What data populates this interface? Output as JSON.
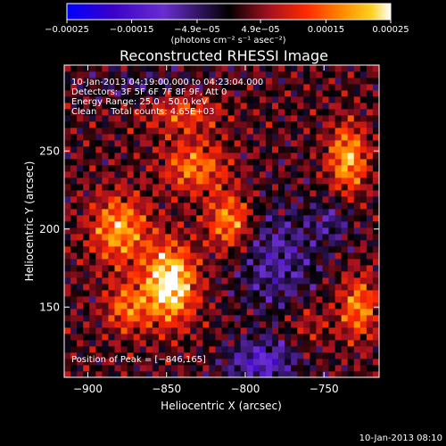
{
  "chart_data": {
    "type": "heatmap",
    "title": "Reconstructed RHESSI Image",
    "xlabel": "Heliocentric X (arcsec)",
    "ylabel": "Heliocentric Y (arcsec)",
    "xlim": [
      -915,
      -715
    ],
    "ylim": [
      105,
      305
    ],
    "x_ticks": [
      -900,
      -850,
      -800,
      -750
    ],
    "x_tick_labels": [
      "−900",
      "−850",
      "−800",
      "−750"
    ],
    "y_ticks": [
      150,
      200,
      250
    ],
    "y_tick_labels": [
      "150",
      "200",
      "250"
    ],
    "colorbar": {
      "range": [
        -0.00025,
        0.00025
      ],
      "tick_values": [
        -0.00025,
        -0.00015,
        -4.9e-05,
        4.9e-05,
        0.00015,
        0.00025
      ],
      "tick_labels": [
        "−0.00025",
        "−0.00015",
        "−4.9e−05",
        "4.9e−05",
        "0.00015",
        "0.00025"
      ],
      "unit_label": "(photons cm⁻² s⁻¹ asec⁻²)",
      "colors": [
        "#0000ff",
        "#3a00c8",
        "#6a2dd1",
        "#000000",
        "#a01020",
        "#ff2a00",
        "#ff8a00",
        "#ffd020",
        "#ffffff"
      ]
    },
    "annotations": [
      "10-Jan-2013 04:19:00.000 to 04:23:04.000",
      "Detectors: 3F 5F 6F 7F 8F 9F, Att 0",
      "Energy Range: 25.0 - 50.0 keV",
      "Clean     Total counts: 4.65E+03",
      "Position of Peak = [−846,165]"
    ],
    "peak": {
      "x": -846,
      "y": 165
    },
    "blobs": [
      {
        "x": -848,
        "y": 165,
        "sx": 16,
        "sy": 24,
        "a": 0.00026
      },
      {
        "x": -880,
        "y": 200,
        "sx": 18,
        "sy": 22,
        "a": 0.00017
      },
      {
        "x": -875,
        "y": 150,
        "sx": 14,
        "sy": 16,
        "a": 0.00013
      },
      {
        "x": -810,
        "y": 205,
        "sx": 14,
        "sy": 18,
        "a": 0.00016
      },
      {
        "x": -832,
        "y": 240,
        "sx": 20,
        "sy": 16,
        "a": 0.00014
      },
      {
        "x": -840,
        "y": 275,
        "sx": 24,
        "sy": 14,
        "a": 0.0001
      },
      {
        "x": -735,
        "y": 245,
        "sx": 12,
        "sy": 22,
        "a": 0.00018
      },
      {
        "x": -728,
        "y": 150,
        "sx": 12,
        "sy": 20,
        "a": 0.00015
      },
      {
        "x": -760,
        "y": 140,
        "sx": 14,
        "sy": 14,
        "a": 6e-05
      },
      {
        "x": -780,
        "y": 180,
        "sx": 24,
        "sy": 34,
        "a": -0.0001
      },
      {
        "x": -790,
        "y": 115,
        "sx": 22,
        "sy": 14,
        "a": -0.00014
      },
      {
        "x": -860,
        "y": 292,
        "sx": 36,
        "sy": 10,
        "a": -6e-05
      },
      {
        "x": -745,
        "y": 205,
        "sx": 14,
        "sy": 16,
        "a": -7e-05
      }
    ]
  },
  "footer": {
    "timestamp": "10-Jan-2013 08:10"
  }
}
